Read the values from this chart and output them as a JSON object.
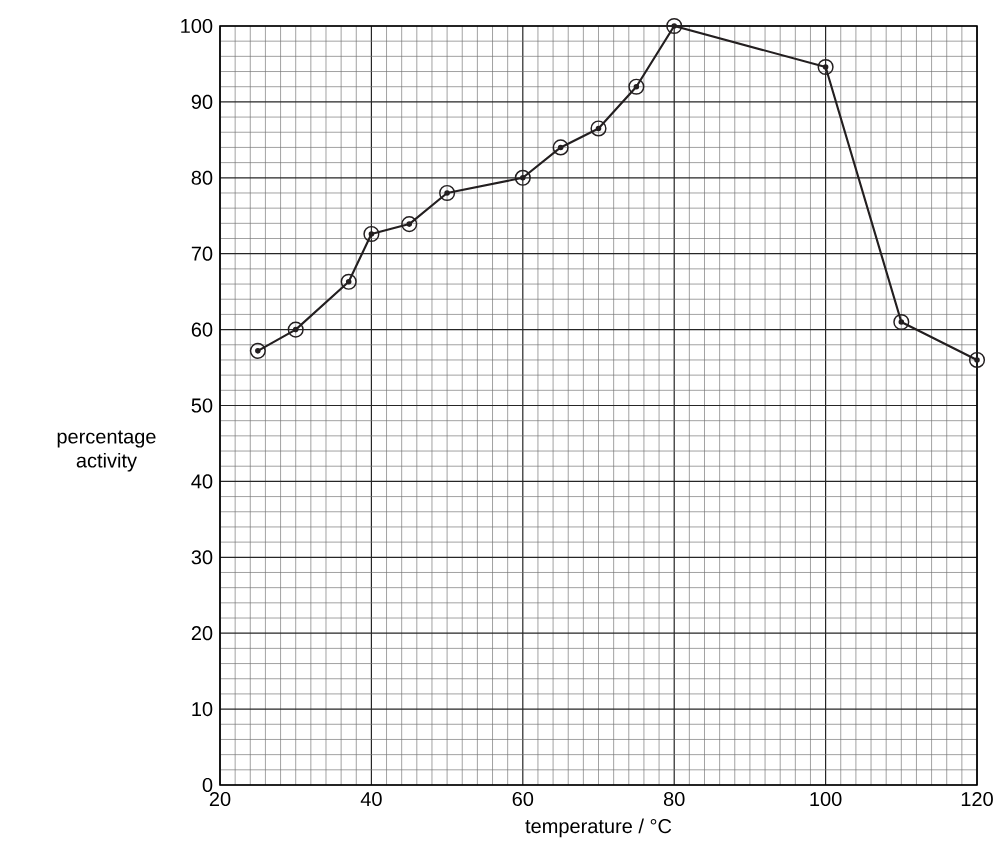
{
  "chart_data": {
    "type": "line",
    "xlabel": "temperature / °C",
    "ylabel": "percentage activity",
    "x": [
      25,
      30,
      37,
      40,
      45,
      50,
      60,
      65,
      70,
      75,
      80,
      100,
      110,
      120
    ],
    "series": [
      {
        "color": "#231f20",
        "values": [
          57.2,
          60,
          66.3,
          72.6,
          73.9,
          78,
          80,
          84,
          86.5,
          92,
          100,
          94.6,
          61,
          56
        ]
      }
    ],
    "xlim": [
      20,
      120
    ],
    "ylim": [
      0,
      100
    ],
    "xticks": [
      20,
      40,
      60,
      80,
      100,
      120
    ],
    "yticks": [
      0,
      10,
      20,
      30,
      40,
      50,
      60,
      70,
      80,
      90,
      100
    ],
    "grid": true,
    "marker": "circle",
    "line_style": "solid"
  }
}
